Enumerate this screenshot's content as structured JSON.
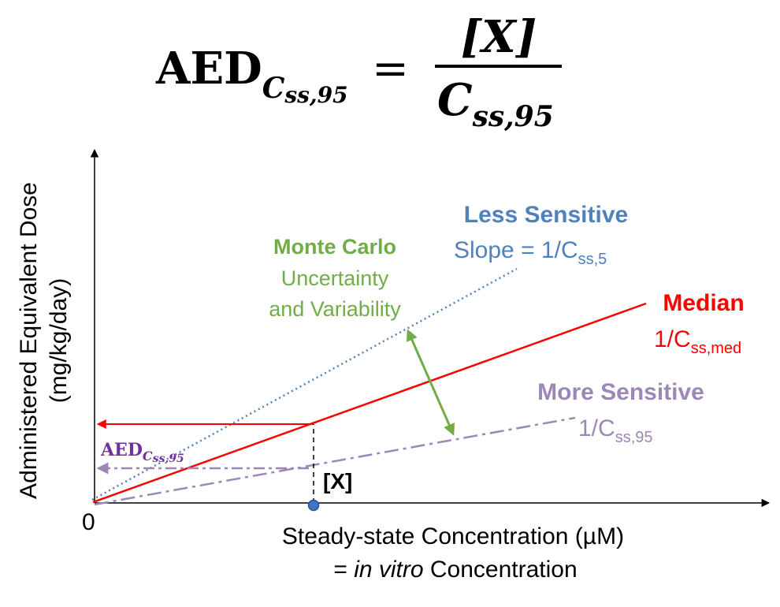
{
  "formula": {
    "lhs_main": "AED",
    "lhs_sub": "C",
    "lhs_sub2": "ss,95",
    "equals": "=",
    "numerator": "[X]",
    "denominator_main": "C",
    "denominator_sub": "ss,95"
  },
  "axes": {
    "y_label_line1": "Administered Equivalent Dose",
    "y_label_line2": "(mg/kg/day)",
    "origin_label": "0",
    "x_label_line1": "Steady-state Concentration (µM)",
    "x_label_prefix": "= ",
    "x_label_italic": "in vitro",
    "x_label_suffix": " Concentration"
  },
  "labels": {
    "less_title": "Less Sensitive",
    "less_slope_prefix": "Slope = 1/C",
    "less_slope_sub": "ss,5",
    "monte_line1": "Monte Carlo",
    "monte_line2": "Uncertainty",
    "monte_line3": "and Variability",
    "median_title": "Median",
    "median_prefix": "1/C",
    "median_sub": "ss,med",
    "more_title": "More Sensitive",
    "more_prefix": "1/C",
    "more_sub": "ss,95",
    "aed_main": "AED",
    "aed_sub": "C",
    "aed_sub2": "ss,95",
    "x_marker": "[X]"
  },
  "colors": {
    "axis": "#000000",
    "less_sensitive": "#4f81bd",
    "median": "#ff0000",
    "more_sensitive": "#9c88b6",
    "monte_carlo": "#70ad47",
    "aed_label": "#7030a0",
    "point": "#4472c4"
  }
}
